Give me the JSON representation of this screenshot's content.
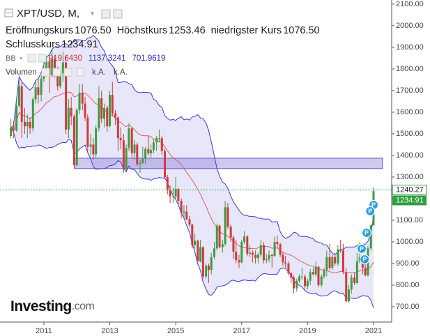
{
  "chart_data": {
    "type": "candlestick",
    "symbol": "XPT/USD, M,",
    "stats": [
      {
        "label": "Eröffnungskurs",
        "value": "1076.50"
      },
      {
        "label": "Höchstkurs",
        "value": "1253.46"
      },
      {
        "label": "niedrigster Kurs",
        "value": "1076.50"
      },
      {
        "label": "Schlusskurs",
        "value": "1234.91"
      }
    ],
    "indicator": {
      "name": "BB",
      "values": [
        "919.6430",
        "1137.3241",
        "701.9619"
      ],
      "colors": [
        "#d03030",
        "#2a2ab8",
        "#2a2ab8"
      ]
    },
    "volume": {
      "label": "Volumen",
      "values": [
        "k.A.",
        "k.A."
      ]
    },
    "logo": [
      "Investing",
      ".com"
    ],
    "up_color": "#3f9a3f",
    "down_color": "#d23a3a",
    "band_color": "#3a3ad8",
    "mid_color": "#e06060",
    "xlim": [
      2009.67,
      2021.55
    ],
    "xticks": [
      2011,
      2013,
      2015,
      2017,
      2019,
      2021
    ],
    "ylim": [
      629,
      2119
    ],
    "yticks": [
      {
        "value": 700,
        "label": "700.00"
      },
      {
        "value": 800,
        "label": "800.00"
      },
      {
        "value": 900,
        "label": "900.00"
      },
      {
        "value": 1000,
        "label": "1000.00"
      },
      {
        "value": 1100,
        "label": "1100.00"
      },
      {
        "value": 1200,
        "label": "1200.00"
      },
      {
        "value": 1300,
        "label": "1300.00"
      },
      {
        "value": 1400,
        "label": "1400.00"
      },
      {
        "value": 1500,
        "label": "1500.00"
      },
      {
        "value": 1600,
        "label": "1600.00"
      },
      {
        "value": 1700,
        "label": "1700.00"
      },
      {
        "value": 1800,
        "label": "1800.00"
      },
      {
        "value": 1900,
        "label": "1900.00"
      },
      {
        "value": 2000,
        "label": "2000.00"
      },
      {
        "value": 2100,
        "label": "2100.00"
      }
    ],
    "last_price": 1240.27,
    "close_price": 1234.91,
    "zone": {
      "x": [
        2011.93,
        2021.27
      ],
      "y": [
        1339,
        1387
      ]
    },
    "markers": [
      {
        "x": 2021.0,
        "y": 1171,
        "label": "P"
      },
      {
        "x": 2020.9,
        "y": 1142,
        "label": "P"
      },
      {
        "x": 2020.79,
        "y": 1042,
        "label": "P"
      },
      {
        "x": 2020.64,
        "y": 968,
        "label": "P"
      },
      {
        "x": 2020.73,
        "y": 919,
        "label": "P"
      }
    ],
    "x": [
      2010,
      2010.08,
      2010.17,
      2010.25,
      2010.33,
      2010.42,
      2010.5,
      2010.58,
      2010.67,
      2010.75,
      2010.83,
      2010.92,
      2011,
      2011.08,
      2011.17,
      2011.25,
      2011.33,
      2011.42,
      2011.5,
      2011.58,
      2011.67,
      2011.75,
      2011.83,
      2011.92,
      2012,
      2012.08,
      2012.17,
      2012.25,
      2012.33,
      2012.42,
      2012.5,
      2012.58,
      2012.67,
      2012.75,
      2012.83,
      2012.92,
      2013,
      2013.08,
      2013.17,
      2013.25,
      2013.33,
      2013.42,
      2013.5,
      2013.58,
      2013.67,
      2013.75,
      2013.83,
      2013.92,
      2014,
      2014.08,
      2014.17,
      2014.25,
      2014.33,
      2014.42,
      2014.5,
      2014.58,
      2014.67,
      2014.75,
      2014.83,
      2014.92,
      2015,
      2015.08,
      2015.17,
      2015.25,
      2015.33,
      2015.42,
      2015.5,
      2015.58,
      2015.67,
      2015.75,
      2015.83,
      2015.92,
      2016,
      2016.08,
      2016.17,
      2016.25,
      2016.33,
      2016.42,
      2016.5,
      2016.58,
      2016.67,
      2016.75,
      2016.83,
      2016.92,
      2017,
      2017.08,
      2017.17,
      2017.25,
      2017.33,
      2017.42,
      2017.5,
      2017.58,
      2017.67,
      2017.75,
      2017.83,
      2017.92,
      2018,
      2018.08,
      2018.17,
      2018.25,
      2018.33,
      2018.42,
      2018.5,
      2018.58,
      2018.67,
      2018.75,
      2018.83,
      2018.92,
      2019,
      2019.08,
      2019.17,
      2019.25,
      2019.33,
      2019.42,
      2019.5,
      2019.58,
      2019.67,
      2019.75,
      2019.83,
      2019.92,
      2020,
      2020.08,
      2020.17,
      2020.25,
      2020.33,
      2020.42,
      2020.5,
      2020.58,
      2020.67,
      2020.75,
      2020.83,
      2020.92,
      2021
    ],
    "ohlc": [
      [
        1490,
        1570,
        1480,
        1530
      ],
      [
        1530,
        1560,
        1480,
        1515
      ],
      [
        1515,
        1650,
        1510,
        1630
      ],
      [
        1630,
        1750,
        1620,
        1720
      ],
      [
        1720,
        1735,
        1480,
        1555
      ],
      [
        1555,
        1620,
        1500,
        1535
      ],
      [
        1535,
        1590,
        1480,
        1555
      ],
      [
        1555,
        1575,
        1500,
        1525
      ],
      [
        1525,
        1670,
        1510,
        1660
      ],
      [
        1660,
        1740,
        1640,
        1715
      ],
      [
        1715,
        1760,
        1640,
        1680
      ],
      [
        1680,
        1770,
        1650,
        1755
      ],
      [
        1755,
        1830,
        1740,
        1800
      ],
      [
        1800,
        1860,
        1770,
        1835
      ],
      [
        1835,
        1860,
        1690,
        1770
      ],
      [
        1770,
        1890,
        1760,
        1845
      ],
      [
        1845,
        1860,
        1760,
        1800
      ],
      [
        1800,
        1810,
        1700,
        1720
      ],
      [
        1720,
        1800,
        1710,
        1780
      ],
      [
        1780,
        1880,
        1740,
        1830
      ],
      [
        1830,
        1860,
        1500,
        1520
      ],
      [
        1520,
        1660,
        1480,
        1620
      ],
      [
        1620,
        1670,
        1540,
        1580
      ],
      [
        1580,
        1590,
        1340,
        1355
      ],
      [
        1355,
        1620,
        1350,
        1610
      ],
      [
        1610,
        1730,
        1590,
        1690
      ],
      [
        1690,
        1730,
        1610,
        1640
      ],
      [
        1640,
        1670,
        1560,
        1575
      ],
      [
        1575,
        1590,
        1420,
        1440
      ],
      [
        1440,
        1500,
        1400,
        1450
      ],
      [
        1450,
        1480,
        1380,
        1405
      ],
      [
        1405,
        1540,
        1390,
        1525
      ],
      [
        1525,
        1720,
        1510,
        1665
      ],
      [
        1665,
        1700,
        1550,
        1570
      ],
      [
        1570,
        1640,
        1530,
        1620
      ],
      [
        1620,
        1630,
        1510,
        1535
      ],
      [
        1535,
        1700,
        1530,
        1680
      ],
      [
        1680,
        1740,
        1580,
        1595
      ],
      [
        1595,
        1610,
        1540,
        1575
      ],
      [
        1575,
        1580,
        1420,
        1480
      ],
      [
        1480,
        1530,
        1430,
        1470
      ],
      [
        1470,
        1500,
        1320,
        1340
      ],
      [
        1340,
        1450,
        1320,
        1435
      ],
      [
        1435,
        1550,
        1420,
        1525
      ],
      [
        1525,
        1530,
        1390,
        1410
      ],
      [
        1410,
        1470,
        1380,
        1450
      ],
      [
        1450,
        1460,
        1350,
        1360
      ],
      [
        1360,
        1380,
        1320,
        1365
      ],
      [
        1365,
        1440,
        1360,
        1385
      ],
      [
        1385,
        1440,
        1360,
        1430
      ],
      [
        1430,
        1490,
        1400,
        1410
      ],
      [
        1410,
        1450,
        1390,
        1425
      ],
      [
        1425,
        1475,
        1410,
        1460
      ],
      [
        1460,
        1490,
        1420,
        1480
      ],
      [
        1480,
        1520,
        1460,
        1480
      ],
      [
        1480,
        1490,
        1400,
        1420
      ],
      [
        1420,
        1430,
        1290,
        1300
      ],
      [
        1300,
        1310,
        1220,
        1240
      ],
      [
        1240,
        1260,
        1180,
        1210
      ],
      [
        1210,
        1250,
        1180,
        1210
      ],
      [
        1210,
        1300,
        1200,
        1245
      ],
      [
        1245,
        1250,
        1170,
        1190
      ],
      [
        1190,
        1200,
        1110,
        1135
      ],
      [
        1135,
        1170,
        1110,
        1140
      ],
      [
        1140,
        1170,
        1100,
        1105
      ],
      [
        1105,
        1120,
        1070,
        1080
      ],
      [
        1080,
        1085,
        970,
        985
      ],
      [
        985,
        1040,
        970,
        1005
      ],
      [
        1005,
        1010,
        910,
        910
      ],
      [
        910,
        1010,
        905,
        975
      ],
      [
        975,
        980,
        830,
        840
      ],
      [
        840,
        900,
        830,
        890
      ],
      [
        890,
        900,
        810,
        870
      ],
      [
        870,
        950,
        850,
        930
      ],
      [
        930,
        1000,
        920,
        970
      ],
      [
        970,
        1085,
        960,
        1075
      ],
      [
        1075,
        1080,
        970,
        975
      ],
      [
        975,
        1010,
        950,
        990
      ],
      [
        990,
        1190,
        980,
        1160
      ],
      [
        1160,
        1180,
        1060,
        1070
      ],
      [
        1070,
        1080,
        1000,
        1020
      ],
      [
        1020,
        1030,
        920,
        955
      ],
      [
        955,
        1010,
        900,
        915
      ],
      [
        915,
        940,
        880,
        905
      ],
      [
        905,
        1010,
        900,
        1000
      ],
      [
        1000,
        1050,
        990,
        1025
      ],
      [
        1025,
        1030,
        935,
        945
      ],
      [
        945,
        985,
        930,
        950
      ],
      [
        950,
        960,
        905,
        940
      ],
      [
        940,
        960,
        900,
        925
      ],
      [
        925,
        950,
        900,
        940
      ],
      [
        940,
        1010,
        930,
        985
      ],
      [
        985,
        1000,
        900,
        915
      ],
      [
        915,
        945,
        900,
        920
      ],
      [
        920,
        960,
        905,
        940
      ],
      [
        940,
        945,
        880,
        935
      ],
      [
        935,
        1025,
        930,
        1000
      ],
      [
        1000,
        1030,
        970,
        990
      ],
      [
        990,
        995,
        930,
        940
      ],
      [
        940,
        950,
        890,
        905
      ],
      [
        905,
        935,
        880,
        900
      ],
      [
        900,
        910,
        845,
        855
      ],
      [
        855,
        860,
        810,
        835
      ],
      [
        835,
        845,
        760,
        785
      ],
      [
        785,
        830,
        770,
        820
      ],
      [
        820,
        850,
        810,
        840
      ],
      [
        840,
        880,
        825,
        840
      ],
      [
        840,
        850,
        780,
        795
      ],
      [
        795,
        830,
        780,
        820
      ],
      [
        820,
        875,
        800,
        860
      ],
      [
        860,
        880,
        845,
        850
      ],
      [
        850,
        910,
        840,
        885
      ],
      [
        885,
        890,
        790,
        800
      ],
      [
        800,
        850,
        790,
        840
      ],
      [
        840,
        880,
        830,
        870
      ],
      [
        870,
        960,
        840,
        930
      ],
      [
        930,
        990,
        870,
        880
      ],
      [
        880,
        940,
        870,
        930
      ],
      [
        930,
        950,
        890,
        900
      ],
      [
        900,
        985,
        890,
        965
      ],
      [
        965,
        1010,
        950,
        960
      ],
      [
        960,
        990,
        850,
        860
      ],
      [
        860,
        880,
        720,
        725
      ],
      [
        725,
        800,
        720,
        780
      ],
      [
        780,
        850,
        760,
        835
      ],
      [
        835,
        860,
        800,
        810
      ],
      [
        810,
        950,
        805,
        910
      ],
      [
        910,
        1000,
        900,
        930
      ],
      [
        930,
        940,
        850,
        880
      ],
      [
        880,
        920,
        840,
        845
      ],
      [
        845,
        980,
        840,
        970
      ],
      [
        970,
        1080,
        960,
        1076.5
      ],
      [
        1076.5,
        1253.46,
        1076.5,
        1234.91
      ]
    ]
  }
}
